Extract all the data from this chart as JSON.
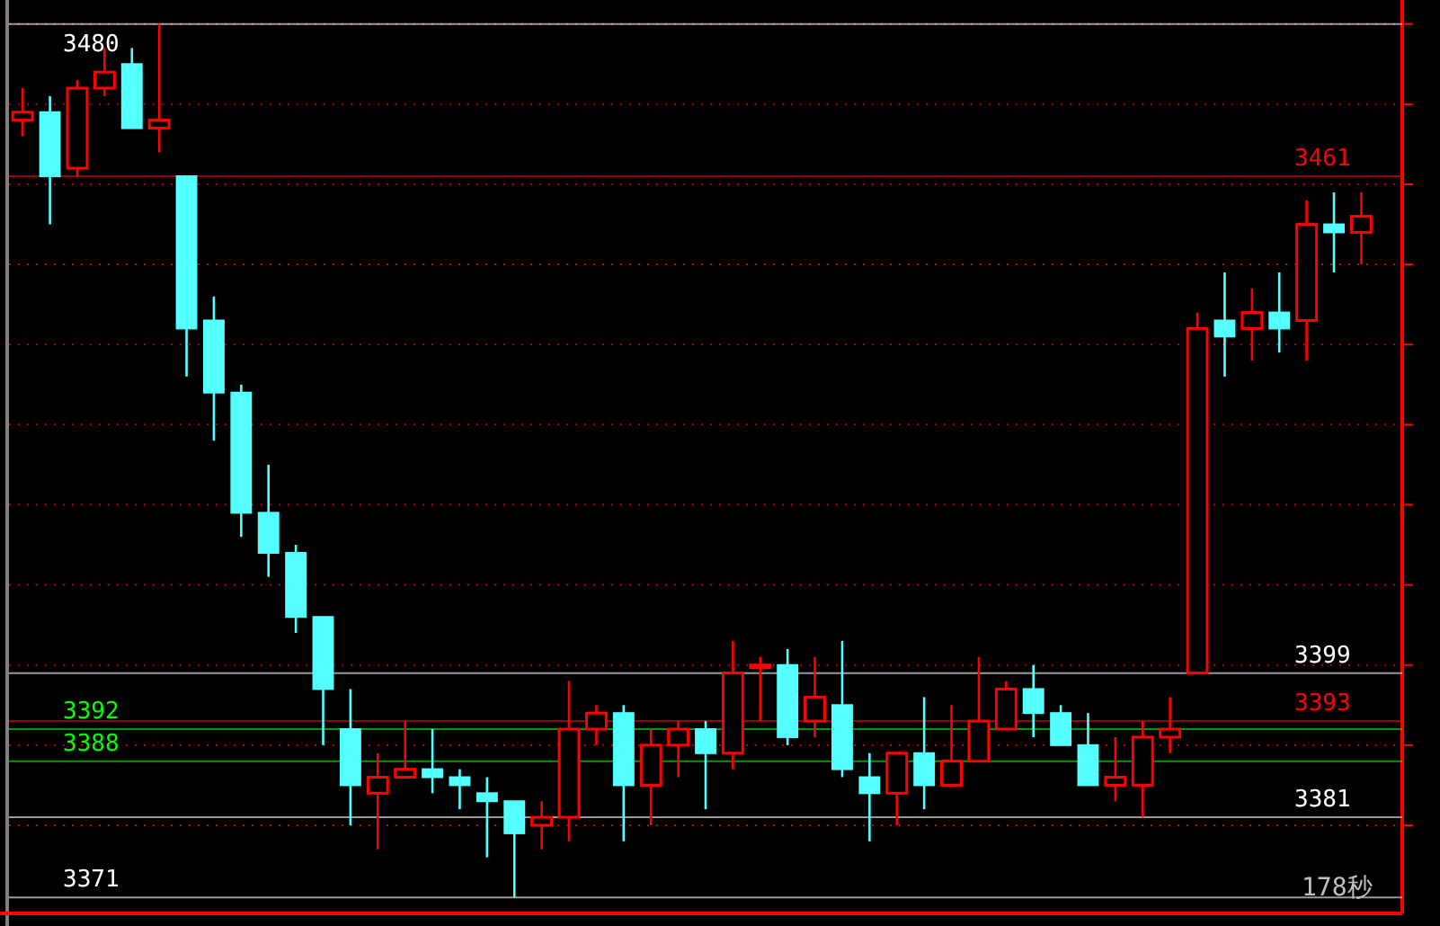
{
  "chart_data": {
    "type": "candlestick",
    "categories": [
      null,
      null,
      null,
      null,
      null,
      null,
      null,
      null,
      null,
      null,
      null,
      null,
      null,
      null,
      null,
      null,
      null,
      null,
      null,
      null,
      null,
      null,
      null,
      null,
      null,
      null,
      null,
      null,
      null,
      null,
      null,
      null,
      null,
      null,
      null,
      null,
      null,
      null,
      null,
      null,
      null,
      null,
      null,
      null,
      null,
      null,
      null,
      null,
      null,
      null
    ],
    "ohlc": [
      [
        3468,
        3472,
        3466,
        3469
      ],
      [
        3469,
        3471,
        3455,
        3461
      ],
      [
        3462,
        3473,
        3461,
        3472
      ],
      [
        3472,
        3477,
        3471,
        3474
      ],
      [
        3475,
        3477,
        3467,
        3467
      ],
      [
        3467,
        3480,
        3464,
        3468
      ],
      [
        3461,
        3461,
        3436,
        3442
      ],
      [
        3443,
        3446,
        3428,
        3434
      ],
      [
        3434,
        3435,
        3416,
        3419
      ],
      [
        3419,
        3425,
        3411,
        3414
      ],
      [
        3414,
        3415,
        3404,
        3406
      ],
      [
        3406,
        3406,
        3390,
        3397
      ],
      [
        3392,
        3397,
        3380,
        3385
      ],
      [
        3384,
        3389,
        3377,
        3386
      ],
      [
        3386,
        3393,
        3386,
        3387
      ],
      [
        3387,
        3392,
        3384,
        3386
      ],
      [
        3386,
        3387,
        3382,
        3385
      ],
      [
        3384,
        3386,
        3376,
        3383
      ],
      [
        3383,
        3383,
        3371,
        3379
      ],
      [
        3380,
        3383,
        3377,
        3381
      ],
      [
        3381,
        3398,
        3378,
        3392
      ],
      [
        3392,
        3395,
        3390,
        3394
      ],
      [
        3394,
        3395,
        3378,
        3385
      ],
      [
        3385,
        3392,
        3380,
        3390
      ],
      [
        3390,
        3393,
        3386,
        3392
      ],
      [
        3392,
        3393,
        3382,
        3389
      ],
      [
        3389,
        3403,
        3387,
        3399
      ],
      [
        3400,
        3401,
        3393,
        3400
      ],
      [
        3400,
        3402,
        3390,
        3391
      ],
      [
        3393,
        3401,
        3391,
        3396
      ],
      [
        3395,
        3403,
        3386,
        3387
      ],
      [
        3386,
        3389,
        3378,
        3384
      ],
      [
        3384,
        3389,
        3380,
        3389
      ],
      [
        3389,
        3396,
        3382,
        3385
      ],
      [
        3385,
        3395,
        3385,
        3388
      ],
      [
        3388,
        3401,
        3388,
        3393
      ],
      [
        3392,
        3398,
        3392,
        3397
      ],
      [
        3397,
        3400,
        3391,
        3394
      ],
      [
        3394,
        3395,
        3390,
        3390
      ],
      [
        3390,
        3394,
        3385,
        3385
      ],
      [
        3385,
        3391,
        3383,
        3386
      ],
      [
        3385,
        3393,
        3381,
        3391
      ],
      [
        3391,
        3396,
        3389,
        3392
      ],
      [
        3399,
        3444,
        3399,
        3442
      ],
      [
        3443,
        3449,
        3436,
        3441
      ],
      [
        3442,
        3447,
        3438,
        3444
      ],
      [
        3444,
        3449,
        3439,
        3442
      ],
      [
        3443,
        3458,
        3438,
        3455
      ],
      [
        3455,
        3459,
        3449,
        3454
      ],
      [
        3454,
        3459,
        3450,
        3456
      ]
    ],
    "colors": [
      "#ff0000",
      "#54ffff",
      "#ff0000",
      "#ff0000",
      "#54ffff",
      "#ff0000",
      "#54ffff",
      "#54ffff",
      "#54ffff",
      "#54ffff",
      "#54ffff",
      "#54ffff",
      "#54ffff",
      "#ff0000",
      "#ff0000",
      "#54ffff",
      "#54ffff",
      "#54ffff",
      "#54ffff",
      "#ff0000",
      "#ff0000",
      "#ff0000",
      "#54ffff",
      "#ff0000",
      "#ff0000",
      "#54ffff",
      "#ff0000",
      "#ff0000",
      "#54ffff",
      "#ff0000",
      "#54ffff",
      "#54ffff",
      "#ff0000",
      "#54ffff",
      "#ff0000",
      "#ff0000",
      "#ff0000",
      "#54ffff",
      "#54ffff",
      "#54ffff",
      "#ff0000",
      "#ff0000",
      "#ff0000",
      "#ff0000",
      "#54ffff",
      "#ff0000",
      "#54ffff",
      "#ff0000",
      "#54ffff",
      "#ff0000"
    ],
    "ylim": [
      3369,
      3483
    ],
    "yticks": [
      {
        "value": 3480,
        "label": null
      },
      {
        "value": 3470,
        "label": null
      },
      {
        "value": 3460,
        "label": null
      },
      {
        "value": 3450,
        "label": null
      },
      {
        "value": 3440,
        "label": null
      },
      {
        "value": 3430,
        "label": null
      },
      {
        "value": 3420,
        "label": null
      },
      {
        "value": 3410,
        "label": null
      },
      {
        "value": 3400,
        "label": null
      },
      {
        "value": 3390,
        "label": null
      },
      {
        "value": 3380,
        "label": null
      }
    ],
    "grid": "y",
    "ref_lines": [
      {
        "axis": "y",
        "value": 3480,
        "label": "3480",
        "color": "#ffffff"
      },
      {
        "axis": "y",
        "value": 3461,
        "label": "3461",
        "color": "#ff0000"
      },
      {
        "axis": "y",
        "value": 3392,
        "label": "3392",
        "color": "#00ff00"
      },
      {
        "axis": "y",
        "value": 3381,
        "label": "3381",
        "color": "#ffffff"
      },
      {
        "axis": "y",
        "value": 3371,
        "label": "3371",
        "color": "#ffffff"
      },
      {
        "axis": "y",
        "value": 3393,
        "label": "3393",
        "color": "#ff0000"
      },
      {
        "axis": "y",
        "value": 3388,
        "label": "3388",
        "color": "#00ff00"
      },
      {
        "axis": "y",
        "value": 3399,
        "label": "3399",
        "color": "#ffffff"
      }
    ],
    "annotations": [
      "178秒"
    ]
  }
}
